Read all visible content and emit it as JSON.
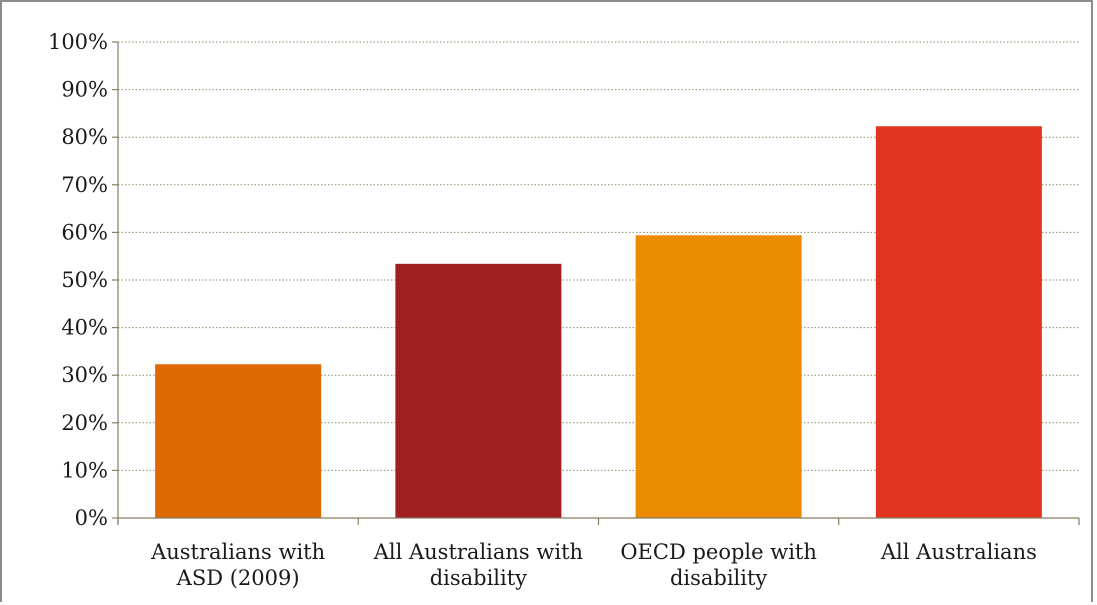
{
  "chart_data": {
    "type": "bar",
    "categories": [
      [
        "Australians with",
        "ASD (2009)"
      ],
      [
        "All Australians with",
        "disability"
      ],
      [
        "OECD people with",
        "disability"
      ],
      [
        "All Australians"
      ]
    ],
    "values": [
      32.3,
      53.4,
      59.4,
      82.3
    ],
    "colors": [
      "#dd6a00",
      "#9f1f20",
      "#ea8b00",
      "#e0341f"
    ],
    "ylim": [
      0,
      100
    ],
    "yticks": [
      0,
      10,
      20,
      30,
      40,
      50,
      60,
      70,
      80,
      90,
      100
    ],
    "ytick_labels": [
      "0%",
      "10%",
      "20%",
      "30%",
      "40%",
      "50%",
      "60%",
      "70%",
      "80%",
      "90%",
      "100%"
    ],
    "title": "",
    "xlabel": "",
    "ylabel": "",
    "grid": true,
    "gridline_color": "#8c8c6a",
    "axis_color": "#8a7d60"
  }
}
